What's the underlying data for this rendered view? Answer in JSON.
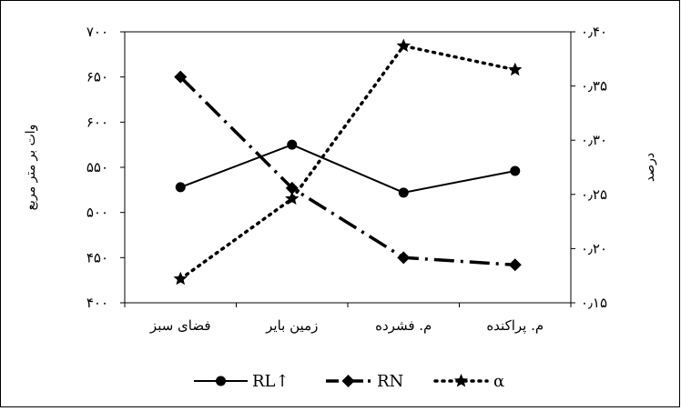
{
  "chart_data": {
    "type": "line",
    "categories": [
      "فضای سبز",
      "زمین بایر",
      "م. فشرده",
      "م. پراکنده"
    ],
    "left_axis": {
      "label": "وات بر متر مربع",
      "range": [
        400,
        700
      ],
      "ticks": [
        400,
        450,
        500,
        550,
        600,
        650,
        700
      ],
      "tick_labels": [
        "۴۰۰",
        "۴۵۰",
        "۵۰۰",
        "۵۵۰",
        "۶۰۰",
        "۶۵۰",
        "۷۰۰"
      ]
    },
    "right_axis": {
      "label": "درصد",
      "range": [
        0.15,
        0.4
      ],
      "ticks": [
        0.15,
        0.2,
        0.25,
        0.3,
        0.35,
        0.4
      ],
      "tick_labels": [
        "۰٫۱۵",
        "۰٫۲۰",
        "۰٫۲۵",
        "۰٫۳۰",
        "۰٫۳۵",
        "۰٫۴۰"
      ]
    },
    "series": [
      {
        "name": "RL↑",
        "axis": "left",
        "style": "solid",
        "marker": "circle",
        "values": [
          528,
          575,
          522,
          546
        ]
      },
      {
        "name": "RN",
        "axis": "left",
        "style": "dashdot",
        "marker": "diamond",
        "values": [
          650,
          527,
          450,
          442
        ]
      },
      {
        "name": "α",
        "axis": "right",
        "style": "dotted",
        "marker": "star",
        "values": [
          0.172,
          0.246,
          0.387,
          0.365
        ]
      }
    ],
    "grid": false,
    "legend_position": "bottom"
  }
}
